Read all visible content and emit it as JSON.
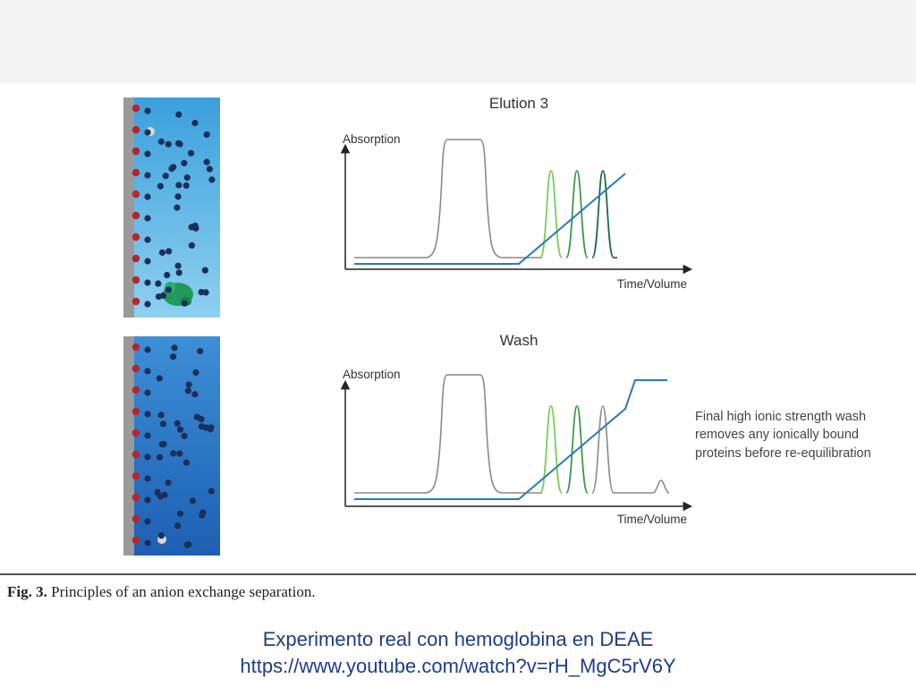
{
  "slide": {
    "caption_prefix": "Fig. 3.",
    "caption_text": "Principles of an anion exchange separation.",
    "footer_line1": "Experimento real con hemoglobina en DEAE",
    "footer_line2": "https://www.youtube.com/watch?v=rH_MgC5rV6Y"
  },
  "panels": {
    "elution": {
      "title": "Elution 3",
      "y_label": "Absorption",
      "x_label": "Time/Volume"
    },
    "wash": {
      "title": "Wash",
      "y_label": "Absorption",
      "x_label": "Time/Volume",
      "note_line1": "Final high ionic strength wash",
      "note_line2": "removes any ionically bound",
      "note_line3": "proteins before re-equilibration"
    }
  },
  "colors": {
    "gradient_line": "#2a7ab8",
    "absorption_line": "#8a8a8a",
    "peak_light": "#7ccc5c",
    "peak_mid": "#3e9a4e",
    "peak_dark": "#1d6b45",
    "column_top": "#3aa3dd",
    "column_bottom": "#1e6bbf",
    "footer_text": "#1f3c88"
  }
}
